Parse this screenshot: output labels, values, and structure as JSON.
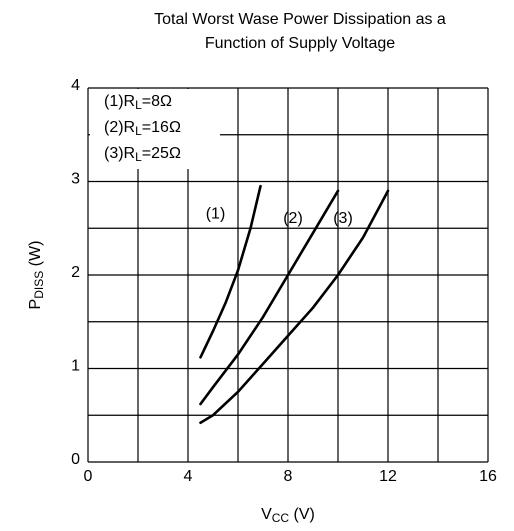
{
  "chart_data": {
    "type": "line",
    "title": [
      "Total Worst Wase Power Dissipation as a",
      "Function of Supply Voltage"
    ],
    "xlabel": [
      "V",
      "CC",
      " (V)"
    ],
    "ylabel": [
      "P",
      "DISS",
      " (W)"
    ],
    "xlim": [
      0,
      16
    ],
    "xticks": [
      0,
      4,
      8,
      12,
      16
    ],
    "xticks_minor": [
      2,
      6,
      10,
      14
    ],
    "ylim": [
      0,
      4
    ],
    "yticks": [
      0,
      1,
      2,
      3,
      4
    ],
    "yticks_minor": [
      0.5,
      1.5,
      2.5,
      3.5
    ],
    "grid": true,
    "series": [
      {
        "name": [
          "(1)R",
          "L",
          "=8Ω"
        ],
        "label": "(1)",
        "color": "#000000",
        "x": [
          4.5,
          5,
          5.5,
          6,
          6.5,
          6.9
        ],
        "values": [
          1.12,
          1.4,
          1.7,
          2.05,
          2.5,
          2.95
        ]
      },
      {
        "name": [
          "(2)R",
          "L",
          "=16Ω"
        ],
        "label": "(2)",
        "color": "#000000",
        "x": [
          4.5,
          5,
          6,
          7,
          8,
          9,
          10
        ],
        "values": [
          0.62,
          0.8,
          1.15,
          1.55,
          2.0,
          2.45,
          2.9
        ]
      },
      {
        "name": [
          "(3)R",
          "L",
          "=25Ω"
        ],
        "label": "(3)",
        "color": "#000000",
        "x": [
          4.5,
          5,
          6,
          7,
          8,
          9,
          10,
          11,
          12
        ],
        "values": [
          0.42,
          0.5,
          0.75,
          1.05,
          1.35,
          1.65,
          2.0,
          2.4,
          2.9
        ]
      }
    ]
  }
}
